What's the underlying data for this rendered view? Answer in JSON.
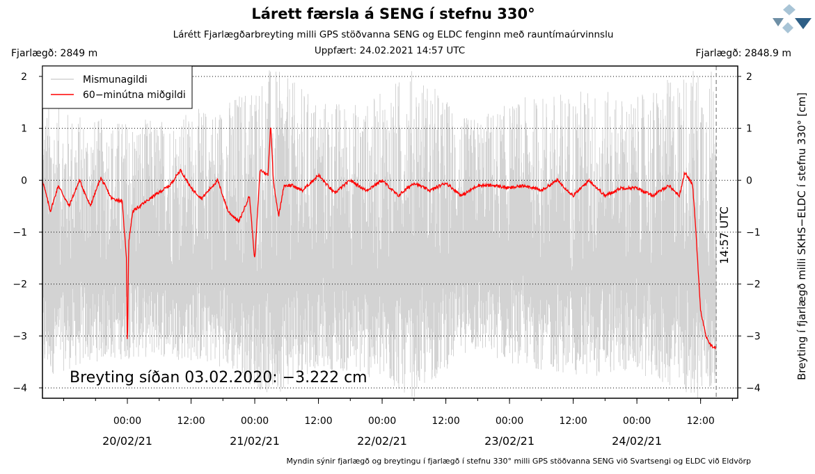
{
  "header": {
    "title": "Lárett færsla á SENG í stefnu 330°",
    "subtitle": "Lárétt Fjarlægðarbreyting milli GPS stöðvanna SENG og ELDC fenginn með rauntímaúrvinnslu",
    "updated": "Uppfært: 24.02.2021 14:57 UTC",
    "distance_left": "Fjarlægð: 2849 m",
    "distance_right": "Fjarlægð: 2848.9 m"
  },
  "footnote": "Myndin sýnir fjarlægð og breytingu í fjarlægð í stefnu 330° milli GPS stöðvanna SENG við Svartsengi og ELDC við Eldvörp",
  "colors": {
    "raw": "#d3d3d3",
    "median": "#ff0000",
    "marker": "#999999",
    "grid": "#000000"
  },
  "chart_data": {
    "type": "line",
    "ylabel": "Breyting í fjarlægð milli SKHS−ELDC í stefnu 330° [cm]",
    "ylim": [
      -4.2,
      2.2
    ],
    "y_ticks": [
      2,
      1,
      0,
      -1,
      -2,
      -3,
      -4
    ],
    "y_tick_labels": [
      "2",
      "1",
      "0",
      "−1",
      "−2",
      "−3",
      "−4"
    ],
    "xlim": [
      "2021-02-19T08:00",
      "2021-02-24T19:00"
    ],
    "x_ticks": [
      "2021-02-20T00:00",
      "2021-02-20T12:00",
      "2021-02-21T00:00",
      "2021-02-21T12:00",
      "2021-02-22T00:00",
      "2021-02-22T12:00",
      "2021-02-23T00:00",
      "2021-02-23T12:00",
      "2021-02-24T00:00",
      "2021-02-24T12:00"
    ],
    "x_tick_time_labels": [
      "00:00",
      "12:00",
      "00:00",
      "12:00",
      "00:00",
      "12:00",
      "00:00",
      "12:00",
      "00:00",
      "12:00"
    ],
    "x_tick_date_labels": [
      "20/02/21",
      "",
      "21/02/21",
      "",
      "22/02/21",
      "",
      "23/02/21",
      "",
      "24/02/21",
      ""
    ],
    "grid": "horizontal dotted",
    "legend_position": "top-left",
    "legend": [
      "Mismunagildi",
      "60−minútna miðgildi"
    ],
    "annotation": "Breyting síðan 03.02.2020: −3.222 cm",
    "marker_label": "14:57 UTC",
    "marker_time": "2021-02-24T14:57",
    "series": [
      {
        "name": "60−minútna miðgildi",
        "color": "#ff0000",
        "x": [
          "2021-02-19T08:00",
          "2021-02-19T09:30",
          "2021-02-19T11:00",
          "2021-02-19T13:00",
          "2021-02-19T15:00",
          "2021-02-19T17:00",
          "2021-02-19T19:00",
          "2021-02-19T21:00",
          "2021-02-19T23:00",
          "2021-02-19T23:50",
          "2021-02-20T00:00",
          "2021-02-20T00:15",
          "2021-02-20T01:00",
          "2021-02-20T03:00",
          "2021-02-20T05:00",
          "2021-02-20T08:00",
          "2021-02-20T10:00",
          "2021-02-20T12:00",
          "2021-02-20T14:00",
          "2021-02-20T17:00",
          "2021-02-20T19:00",
          "2021-02-20T21:00",
          "2021-02-20T23:00",
          "2021-02-21T00:00",
          "2021-02-21T01:00",
          "2021-02-21T02:30",
          "2021-02-21T03:00",
          "2021-02-21T03:30",
          "2021-02-21T04:30",
          "2021-02-21T05:30",
          "2021-02-21T07:00",
          "2021-02-21T09:00",
          "2021-02-21T12:00",
          "2021-02-21T15:00",
          "2021-02-21T18:00",
          "2021-02-21T21:00",
          "2021-02-22T00:00",
          "2021-02-22T03:00",
          "2021-02-22T06:00",
          "2021-02-22T09:00",
          "2021-02-22T12:00",
          "2021-02-22T15:00",
          "2021-02-22T18:00",
          "2021-02-22T21:00",
          "2021-02-23T00:00",
          "2021-02-23T03:00",
          "2021-02-23T06:00",
          "2021-02-23T09:00",
          "2021-02-23T12:00",
          "2021-02-23T15:00",
          "2021-02-23T18:00",
          "2021-02-23T21:00",
          "2021-02-24T00:00",
          "2021-02-24T03:00",
          "2021-02-24T06:00",
          "2021-02-24T08:00",
          "2021-02-24T09:00",
          "2021-02-24T10:00",
          "2021-02-24T10:30",
          "2021-02-24T11:00",
          "2021-02-24T12:00",
          "2021-02-24T13:00",
          "2021-02-24T14:00",
          "2021-02-24T14:57"
        ],
        "y": [
          0.0,
          -0.6,
          -0.1,
          -0.5,
          0.0,
          -0.5,
          0.05,
          -0.35,
          -0.4,
          -1.5,
          -3.35,
          -1.2,
          -0.6,
          -0.45,
          -0.3,
          -0.1,
          0.2,
          -0.15,
          -0.35,
          0.0,
          -0.6,
          -0.8,
          -0.3,
          -1.55,
          0.2,
          0.1,
          1.1,
          0.0,
          -0.7,
          -0.1,
          -0.1,
          -0.2,
          0.1,
          -0.25,
          0.0,
          -0.2,
          0.0,
          -0.3,
          -0.05,
          -0.2,
          -0.05,
          -0.3,
          -0.1,
          -0.1,
          -0.15,
          -0.1,
          -0.2,
          0.0,
          -0.3,
          0.0,
          -0.3,
          -0.15,
          -0.15,
          -0.3,
          -0.1,
          -0.3,
          0.15,
          0.0,
          -0.1,
          -0.8,
          -2.5,
          -3.0,
          -3.2,
          -3.22
        ]
      },
      {
        "name": "Mismunagildi",
        "color": "#d3d3d3",
        "envelope_upper": [
          1.5,
          1.2,
          1.2,
          1.5,
          2.2,
          1.6,
          1.5,
          2.2,
          1.2,
          1.6,
          1.8,
          1.6,
          2.2,
          2.2
        ],
        "envelope_lower": [
          -3.8,
          -3.5,
          -3.4,
          -3.6,
          -4.2,
          -3.6,
          -3.8,
          -4.2,
          -3.3,
          -3.6,
          -3.8,
          -3.7,
          -4.2,
          -4.2
        ],
        "envelope_x": [
          "2021-02-19T08:00",
          "2021-02-19T18:00",
          "2021-02-20T06:00",
          "2021-02-20T18:00",
          "2021-02-21T03:00",
          "2021-02-21T12:00",
          "2021-02-21T21:00",
          "2021-02-22T06:00",
          "2021-02-22T16:00",
          "2021-02-23T03:00",
          "2021-02-23T14:00",
          "2021-02-24T00:00",
          "2021-02-24T10:00",
          "2021-02-24T14:57"
        ]
      }
    ]
  }
}
